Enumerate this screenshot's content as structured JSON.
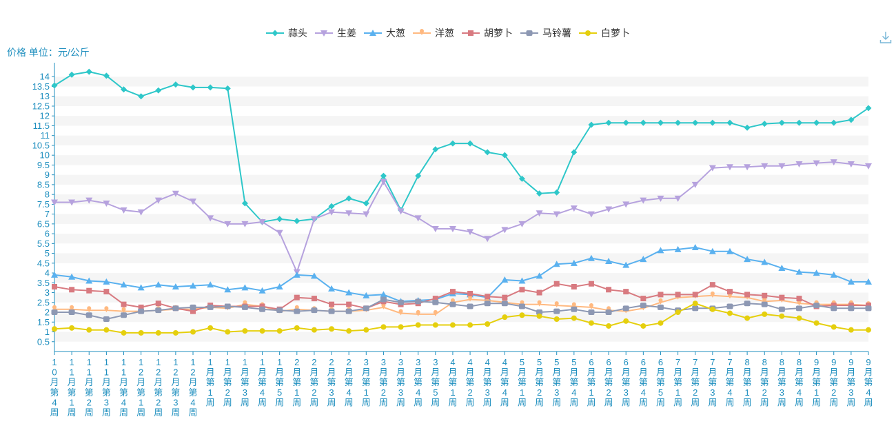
{
  "ui": {
    "y_axis_title": "价格 单位：元/公斤",
    "download_icon": "download-icon",
    "download_color": "#7ab8d8"
  },
  "chart_data": {
    "type": "line",
    "ylabel": "价格 单位：元/公斤",
    "ylim": [
      0,
      14.5
    ],
    "yticks": [
      0.5,
      1,
      1.5,
      2,
      2.5,
      3,
      3.5,
      4,
      4.5,
      5,
      5.5,
      6,
      6.5,
      7,
      7.5,
      8,
      8.5,
      9,
      9.5,
      10,
      10.5,
      11,
      11.5,
      12,
      12.5,
      13,
      13.5,
      14
    ],
    "grid": "horizontal bands",
    "legend_position": "top-center",
    "axis_color": "#1f8fbf",
    "categories": [
      "10月第4周",
      "11月第1周",
      "11月第2周",
      "11月第3周",
      "11月第4周",
      "12月第1周",
      "12月第2周",
      "12月第3周",
      "12月第4周",
      "1月第1周",
      "1月第2周",
      "1月第3周",
      "1月第4周",
      "1月第5周",
      "2月第1周",
      "2月第2周",
      "2月第3周",
      "2月第4周",
      "3月第1周",
      "3月第2周",
      "3月第3周",
      "3月第4周",
      "3月第5周",
      "4月第1周",
      "4月第2周",
      "4月第3周",
      "4月第4周",
      "5月第1周",
      "5月第2周",
      "5月第3周",
      "5月第4周",
      "6月第1周",
      "6月第2周",
      "6月第3周",
      "6月第4周",
      "6月第5周",
      "7月第1周",
      "7月第2周",
      "7月第3周",
      "7月第4周",
      "8月第1周",
      "8月第2周",
      "8月第3周",
      "8月第4周",
      "9月第1周",
      "9月第2周",
      "9月第3周",
      "9月第4周"
    ],
    "series": [
      {
        "name": "蒜头",
        "color": "#2ec7c9",
        "marker": "diamond",
        "values": [
          13.55,
          14.1,
          14.25,
          14.05,
          13.35,
          13.0,
          13.3,
          13.6,
          13.45,
          13.45,
          13.4,
          7.55,
          6.6,
          6.75,
          6.65,
          6.75,
          7.4,
          7.8,
          7.55,
          8.95,
          7.2,
          8.95,
          10.3,
          10.6,
          10.6,
          10.15,
          10.0,
          8.8,
          8.05,
          8.1,
          10.15,
          11.55,
          11.65,
          11.65,
          11.65,
          11.65,
          11.65,
          11.65,
          11.65,
          11.65,
          11.4,
          11.6,
          11.65,
          11.65,
          11.65,
          11.65,
          11.8,
          12.4
        ]
      },
      {
        "name": "生姜",
        "color": "#b6a2de",
        "marker": "triangle-down",
        "values": [
          7.6,
          7.6,
          7.7,
          7.55,
          7.2,
          7.1,
          7.7,
          8.05,
          7.65,
          6.8,
          6.5,
          6.5,
          6.6,
          6.05,
          4.05,
          6.75,
          7.1,
          7.05,
          7.0,
          8.65,
          7.15,
          6.8,
          6.25,
          6.25,
          6.1,
          5.75,
          6.2,
          6.5,
          7.05,
          7.0,
          7.3,
          7.0,
          7.25,
          7.5,
          7.7,
          7.8,
          7.8,
          8.5,
          9.35,
          9.4,
          9.4,
          9.45,
          9.45,
          9.55,
          9.6,
          9.65,
          9.55,
          9.45
        ]
      },
      {
        "name": "大葱",
        "color": "#5ab1ef",
        "marker": "triangle",
        "values": [
          3.9,
          3.8,
          3.6,
          3.55,
          3.4,
          3.25,
          3.4,
          3.3,
          3.35,
          3.4,
          3.15,
          3.25,
          3.1,
          3.3,
          3.9,
          3.85,
          3.2,
          3.0,
          2.85,
          2.9,
          2.55,
          2.6,
          2.65,
          2.95,
          2.9,
          2.75,
          3.65,
          3.6,
          3.85,
          4.45,
          4.5,
          4.75,
          4.6,
          4.4,
          4.7,
          5.15,
          5.2,
          5.3,
          5.1,
          5.1,
          4.7,
          4.55,
          4.25,
          4.05,
          4.0,
          3.9,
          3.55,
          3.55
        ]
      },
      {
        "name": "洋葱",
        "color": "#ffb980",
        "marker": "pin",
        "values": [
          2.15,
          2.15,
          2.1,
          2.1,
          2.05,
          2.05,
          2.1,
          2.15,
          2.15,
          2.25,
          2.2,
          2.4,
          2.3,
          2.05,
          2.15,
          2.1,
          2.05,
          2.05,
          2.1,
          2.25,
          1.95,
          1.9,
          1.9,
          2.5,
          2.65,
          2.6,
          2.5,
          2.4,
          2.4,
          2.35,
          2.3,
          2.25,
          2.1,
          2.05,
          2.2,
          2.5,
          2.75,
          2.8,
          2.85,
          2.8,
          2.75,
          2.55,
          2.6,
          2.45,
          2.4,
          2.4,
          2.4,
          2.35
        ]
      },
      {
        "name": "胡萝卜",
        "color": "#d87a80",
        "marker": "square",
        "values": [
          3.3,
          3.15,
          3.1,
          3.05,
          2.4,
          2.25,
          2.45,
          2.2,
          2.05,
          2.35,
          2.3,
          2.3,
          2.3,
          2.15,
          2.75,
          2.7,
          2.4,
          2.4,
          2.2,
          2.55,
          2.4,
          2.45,
          2.7,
          3.05,
          2.95,
          2.8,
          2.75,
          3.15,
          3.0,
          3.45,
          3.3,
          3.45,
          3.15,
          3.05,
          2.7,
          2.9,
          2.9,
          2.9,
          3.4,
          3.05,
          2.9,
          2.85,
          2.75,
          2.7,
          2.3,
          2.35,
          2.35,
          2.35
        ]
      },
      {
        "name": "马铃薯",
        "color": "#8d98b3",
        "marker": "rounded-square",
        "values": [
          2.0,
          2.0,
          1.85,
          1.65,
          1.85,
          2.05,
          2.1,
          2.2,
          2.25,
          2.25,
          2.3,
          2.25,
          2.15,
          2.1,
          2.05,
          2.1,
          2.05,
          2.05,
          2.2,
          2.65,
          2.5,
          2.55,
          2.5,
          2.4,
          2.3,
          2.45,
          2.45,
          2.3,
          2.0,
          2.05,
          2.15,
          2.0,
          2.0,
          2.2,
          2.35,
          2.25,
          2.1,
          2.2,
          2.2,
          2.3,
          2.45,
          2.4,
          2.15,
          2.2,
          2.35,
          2.2,
          2.2,
          2.2
        ]
      },
      {
        "name": "白萝卜",
        "color": "#e5cf0d",
        "marker": "circle",
        "values": [
          1.15,
          1.2,
          1.1,
          1.1,
          0.95,
          0.95,
          0.95,
          0.95,
          1.0,
          1.2,
          1.0,
          1.05,
          1.05,
          1.05,
          1.2,
          1.1,
          1.15,
          1.05,
          1.1,
          1.25,
          1.25,
          1.35,
          1.35,
          1.35,
          1.35,
          1.4,
          1.75,
          1.85,
          1.8,
          1.65,
          1.7,
          1.45,
          1.3,
          1.55,
          1.3,
          1.45,
          2.0,
          2.45,
          2.15,
          1.95,
          1.7,
          1.9,
          1.8,
          1.7,
          1.45,
          1.25,
          1.1,
          1.1
        ]
      }
    ]
  }
}
